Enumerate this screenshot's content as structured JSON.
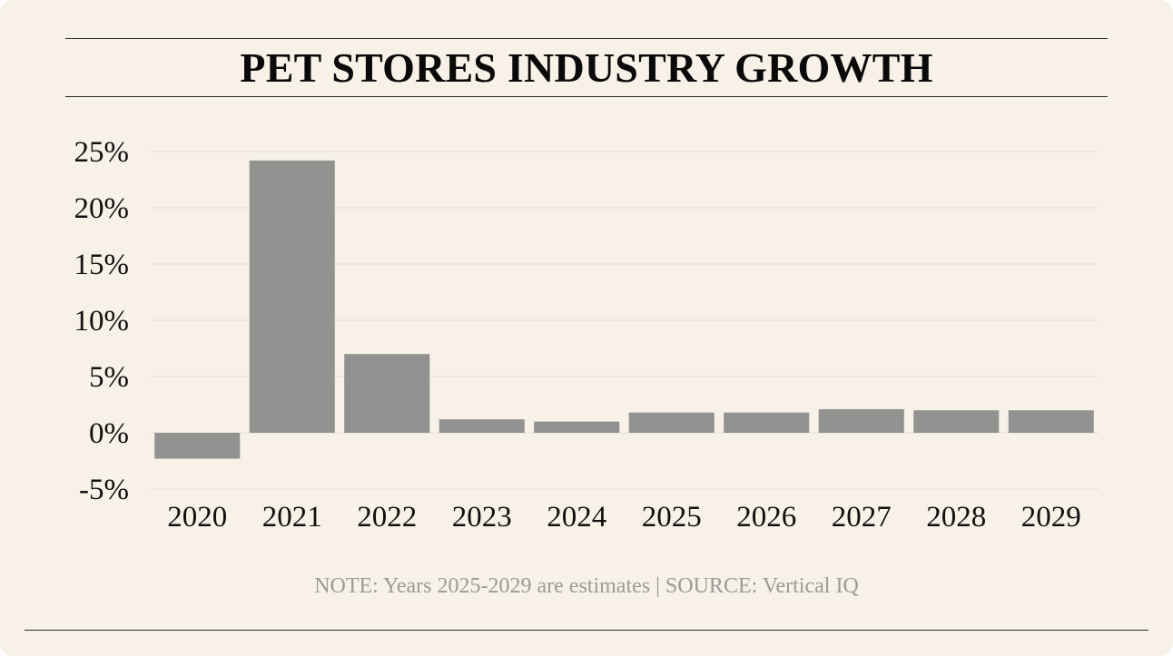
{
  "title": "PET STORES INDUSTRY GROWTH",
  "note": "NOTE: Years 2025-2029 are estimates | SOURCE: Vertical IQ",
  "colors": {
    "background": "#f7f1e7",
    "bar": "#929391",
    "gridline": "#e6e0d6",
    "rule": "#2b2b2b",
    "text": "#111111",
    "note": "#9b9b98"
  },
  "chart_data": {
    "type": "bar",
    "title": "PET STORES INDUSTRY GROWTH",
    "xlabel": "",
    "ylabel": "",
    "categories": [
      "2020",
      "2021",
      "2022",
      "2023",
      "2024",
      "2025",
      "2026",
      "2027",
      "2028",
      "2029"
    ],
    "values": [
      -2.3,
      24.2,
      7.0,
      1.2,
      1.0,
      1.8,
      1.8,
      2.1,
      2.0,
      2.0
    ],
    "ylim": [
      -5,
      25
    ],
    "yticks": [
      25,
      20,
      15,
      10,
      5,
      0,
      -5
    ],
    "ytick_labels": [
      "25%",
      "20%",
      "15%",
      "10%",
      "5%",
      "0%",
      "-5%"
    ],
    "grid": true,
    "legend": "none"
  }
}
